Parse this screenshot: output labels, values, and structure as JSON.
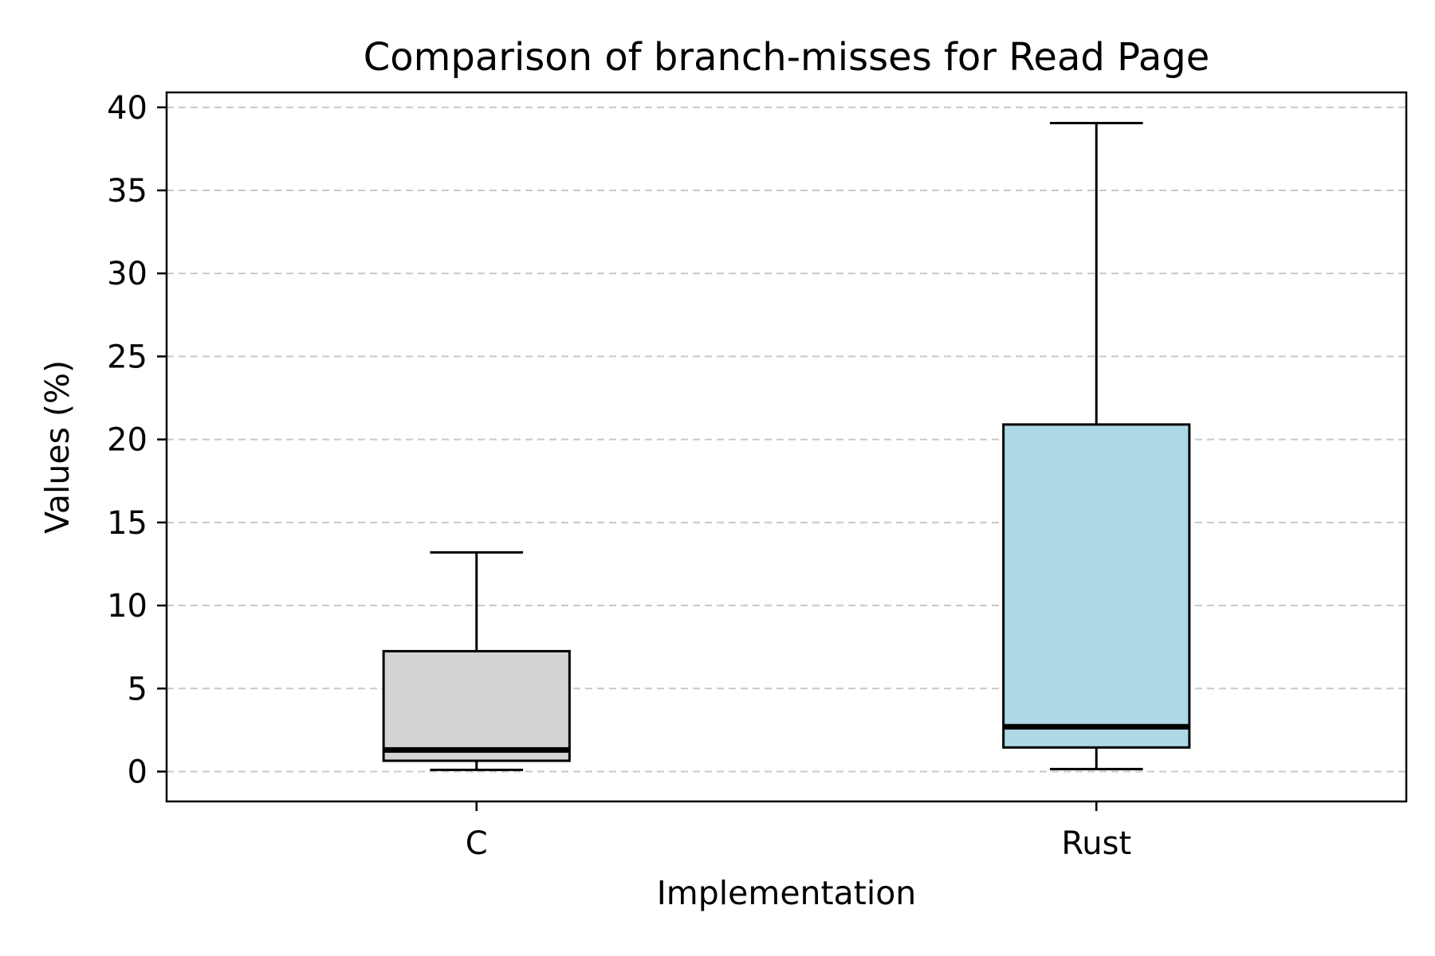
{
  "chart_data": {
    "type": "box",
    "title": "Comparison of branch-misses for Read Page",
    "xlabel": "Implementation",
    "ylabel": "Values (%)",
    "ylim": [
      -1.8,
      40.9
    ],
    "yticks": [
      0,
      5,
      10,
      15,
      20,
      25,
      30,
      35,
      40
    ],
    "grid": {
      "y": true,
      "style": "dashed"
    },
    "categories": [
      "C",
      "Rust"
    ],
    "boxes": [
      {
        "name": "C",
        "whisker_low": 0.1,
        "q1": 0.65,
        "median": 1.3,
        "q3": 7.25,
        "whisker_high": 13.2,
        "color": "#d3d3d3"
      },
      {
        "name": "Rust",
        "whisker_low": 0.15,
        "q1": 1.45,
        "median": 2.7,
        "q3": 20.9,
        "whisker_high": 39.05,
        "color": "#add8e6"
      }
    ]
  }
}
